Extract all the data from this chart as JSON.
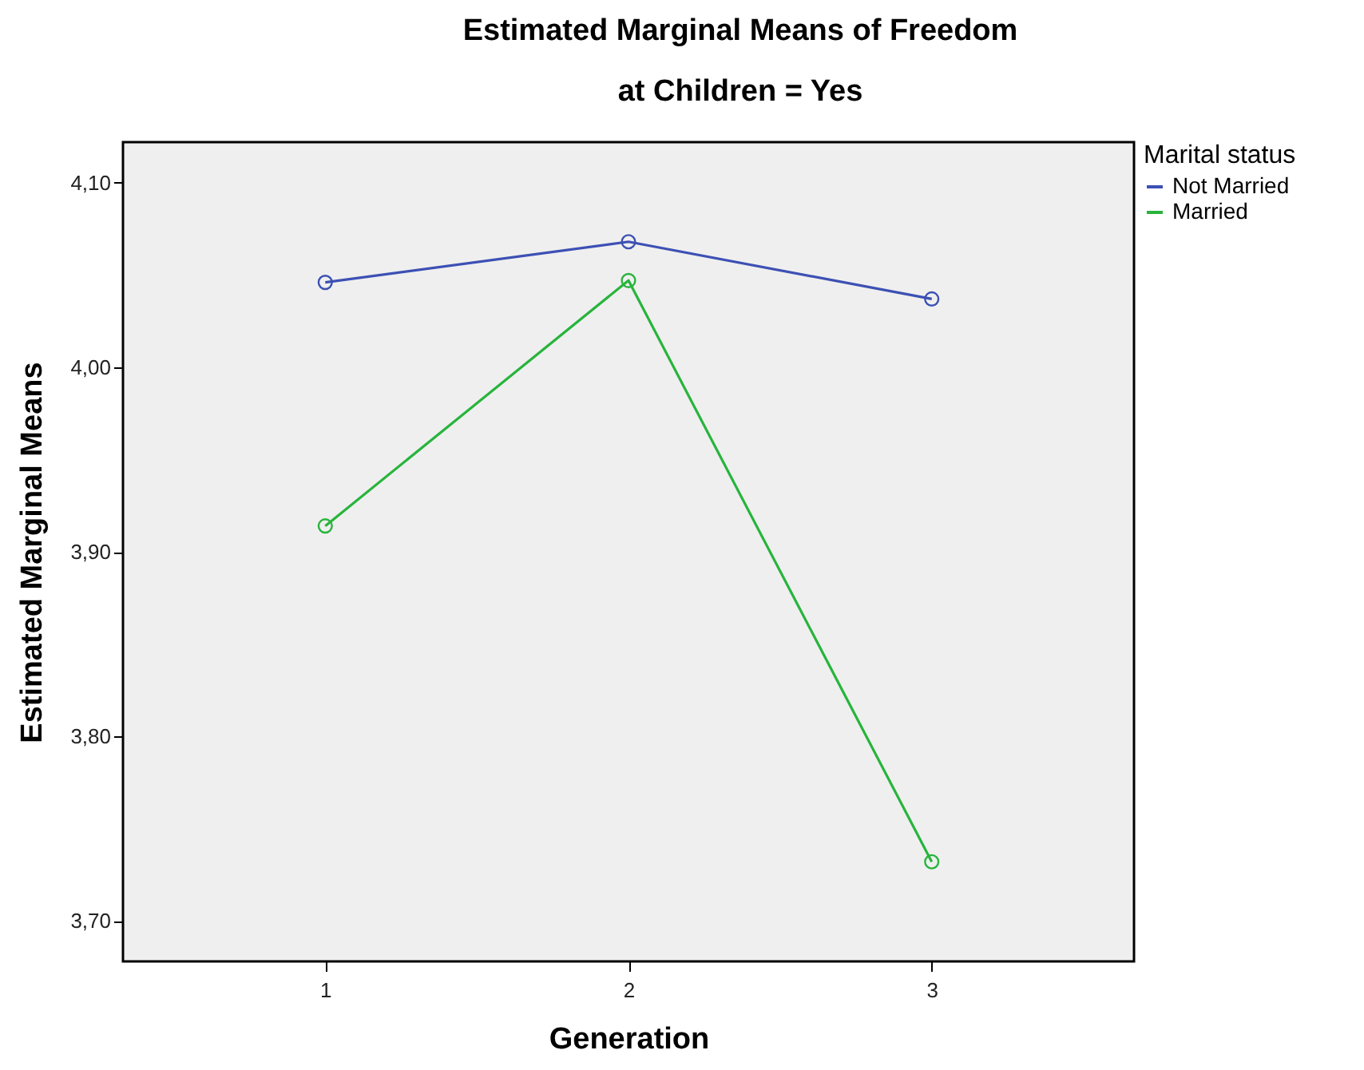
{
  "chart_data": {
    "type": "line",
    "title": [
      "Estimated Marginal Means of Freedom",
      "at Children = Yes"
    ],
    "xlabel": "Generation",
    "ylabel": "Estimated Marginal Means",
    "legend_title": "Marital status",
    "categories": [
      "1",
      "2",
      "3"
    ],
    "series": [
      {
        "name": "Not Married",
        "color": "#3c50b4",
        "values": [
          4.046,
          4.068,
          4.037
        ]
      },
      {
        "name": "Married",
        "color": "#28b43c",
        "values": [
          3.914,
          4.047,
          3.732
        ]
      }
    ],
    "ylim": [
      3.678,
      4.122
    ],
    "yticks": [
      {
        "value": 3.7,
        "label": "3,70"
      },
      {
        "value": 3.8,
        "label": "3,80"
      },
      {
        "value": 3.9,
        "label": "3,90"
      },
      {
        "value": 4.0,
        "label": "4,00"
      },
      {
        "value": 4.1,
        "label": "4,10"
      }
    ],
    "grid": false,
    "legend": "top right",
    "marker": "circle",
    "line_style": "solid"
  }
}
